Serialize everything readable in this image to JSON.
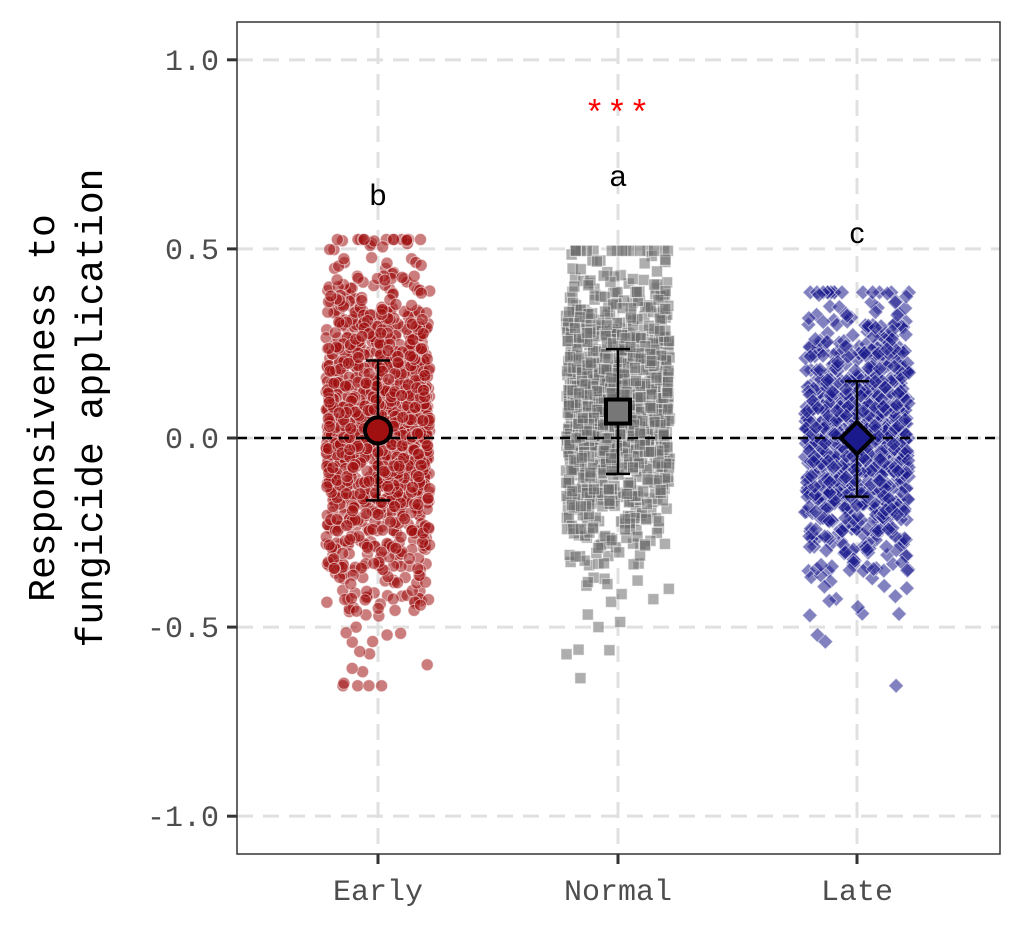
{
  "chart_data": {
    "type": "scatter",
    "subtype": "jitter strip plot with mean and standard deviation",
    "categories": [
      "Early",
      "Normal",
      "Late"
    ],
    "ylabel_line1": "Responsiveness to",
    "ylabel_line2": "fungicide application",
    "xlabel": "",
    "ylim": [
      -1.1,
      1.1
    ],
    "y_ticks": [
      1.0,
      0.5,
      0.0,
      -0.5,
      -1.0
    ],
    "y_tick_labels": [
      "1.0",
      "0.5",
      "0.0",
      "-0.5",
      "-1.0"
    ],
    "reference_line_y": 0.0,
    "grid": true,
    "significance_label": "***",
    "series": [
      {
        "name": "Early",
        "marker": "circle",
        "color": "#a01010",
        "mean": 0.02,
        "sd_low": -0.165,
        "sd_high": 0.205,
        "min": -0.655,
        "max": 0.525,
        "letter": "b",
        "n_points": 1400
      },
      {
        "name": "Normal",
        "marker": "square",
        "color": "#6b6b6b",
        "mean": 0.07,
        "sd_low": -0.095,
        "sd_high": 0.235,
        "min": -0.635,
        "max": 0.495,
        "letter": "a",
        "n_points": 1100
      },
      {
        "name": "Late",
        "marker": "diamond",
        "color": "#1a1a8c",
        "mean": 0.0,
        "sd_low": -0.155,
        "sd_high": 0.15,
        "min": -0.655,
        "max": 0.385,
        "letter": "c",
        "n_points": 900
      }
    ]
  }
}
